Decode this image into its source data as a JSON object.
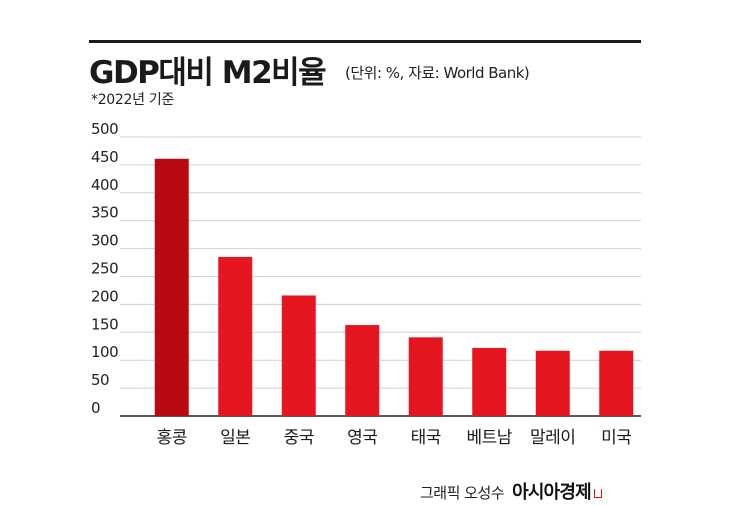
{
  "header": {
    "title": "GDP대비 M2비율",
    "subtitle": "(단위: %, 자료: World Bank)",
    "note": "*2022년 기준"
  },
  "footer": {
    "credit": "그래픽 오성수",
    "brand": "아시아경제"
  },
  "colors": {
    "bar": "#e5161f",
    "bar_highlight": "#b80a10",
    "grid": "#cfcfcf",
    "axis": "#222222"
  },
  "chart_data": {
    "type": "bar",
    "categories": [
      "홍콩",
      "일본",
      "중국",
      "영국",
      "태국",
      "베트남",
      "말레이",
      "미국"
    ],
    "values": [
      461,
      285,
      216,
      163,
      141,
      122,
      117,
      117
    ],
    "highlight_index": 0,
    "ylim": [
      0,
      500
    ],
    "yticks": [
      "0",
      "50",
      "100",
      "150",
      "200",
      "250",
      "300",
      "350",
      "400",
      "450",
      "500"
    ],
    "grid": true,
    "xlabel": "",
    "ylabel": ""
  }
}
